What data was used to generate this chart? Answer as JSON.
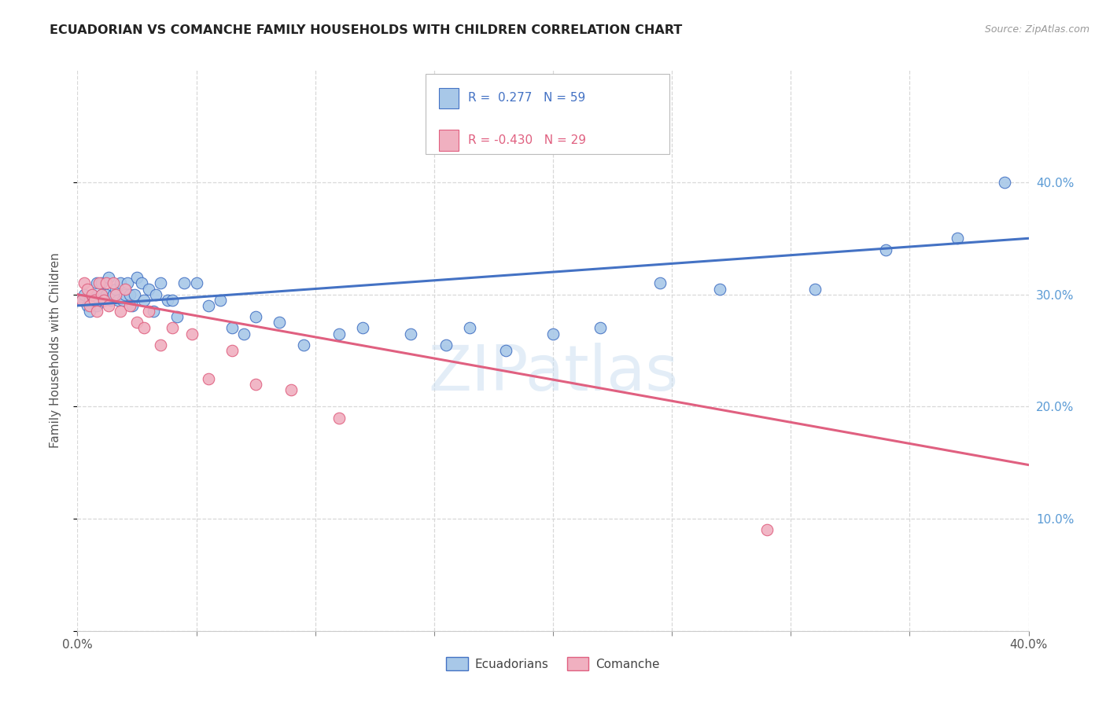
{
  "title": "ECUADORIAN VS COMANCHE FAMILY HOUSEHOLDS WITH CHILDREN CORRELATION CHART",
  "source": "Source: ZipAtlas.com",
  "ylabel": "Family Households with Children",
  "xlim": [
    0.0,
    0.4
  ],
  "ylim": [
    0.0,
    0.5
  ],
  "ytick_values": [
    0.0,
    0.1,
    0.2,
    0.3,
    0.4
  ],
  "xtick_values": [
    0.0,
    0.05,
    0.1,
    0.15,
    0.2,
    0.25,
    0.3,
    0.35,
    0.4
  ],
  "watermark": "ZIPatlas",
  "legend_blue_label": "Ecuadorians",
  "legend_pink_label": "Comanche",
  "blue_R": 0.277,
  "blue_N": 59,
  "pink_R": -0.43,
  "pink_N": 29,
  "blue_color": "#a8c8e8",
  "pink_color": "#f0b0c0",
  "blue_line_color": "#4472c4",
  "pink_line_color": "#e06080",
  "background_color": "#ffffff",
  "grid_color": "#d8d8d8",
  "blue_scatter_x": [
    0.002,
    0.003,
    0.004,
    0.005,
    0.005,
    0.006,
    0.007,
    0.008,
    0.008,
    0.009,
    0.01,
    0.01,
    0.011,
    0.012,
    0.013,
    0.014,
    0.015,
    0.016,
    0.017,
    0.018,
    0.019,
    0.02,
    0.021,
    0.022,
    0.023,
    0.024,
    0.025,
    0.027,
    0.028,
    0.03,
    0.032,
    0.033,
    0.035,
    0.038,
    0.04,
    0.042,
    0.045,
    0.05,
    0.055,
    0.06,
    0.065,
    0.07,
    0.075,
    0.085,
    0.095,
    0.11,
    0.12,
    0.14,
    0.155,
    0.165,
    0.18,
    0.2,
    0.22,
    0.245,
    0.27,
    0.31,
    0.34,
    0.37,
    0.39
  ],
  "blue_scatter_y": [
    0.295,
    0.3,
    0.29,
    0.285,
    0.295,
    0.3,
    0.295,
    0.29,
    0.31,
    0.295,
    0.3,
    0.31,
    0.295,
    0.3,
    0.315,
    0.295,
    0.3,
    0.305,
    0.295,
    0.31,
    0.295,
    0.3,
    0.31,
    0.3,
    0.29,
    0.3,
    0.315,
    0.31,
    0.295,
    0.305,
    0.285,
    0.3,
    0.31,
    0.295,
    0.295,
    0.28,
    0.31,
    0.31,
    0.29,
    0.295,
    0.27,
    0.265,
    0.28,
    0.275,
    0.255,
    0.265,
    0.27,
    0.265,
    0.255,
    0.27,
    0.25,
    0.265,
    0.27,
    0.31,
    0.305,
    0.305,
    0.34,
    0.35,
    0.4
  ],
  "pink_scatter_x": [
    0.002,
    0.003,
    0.004,
    0.005,
    0.006,
    0.007,
    0.008,
    0.009,
    0.01,
    0.011,
    0.012,
    0.013,
    0.015,
    0.016,
    0.018,
    0.02,
    0.022,
    0.025,
    0.028,
    0.03,
    0.035,
    0.04,
    0.048,
    0.055,
    0.065,
    0.075,
    0.09,
    0.11,
    0.29
  ],
  "pink_scatter_y": [
    0.295,
    0.31,
    0.305,
    0.29,
    0.3,
    0.295,
    0.285,
    0.31,
    0.3,
    0.295,
    0.31,
    0.29,
    0.31,
    0.3,
    0.285,
    0.305,
    0.29,
    0.275,
    0.27,
    0.285,
    0.255,
    0.27,
    0.265,
    0.225,
    0.25,
    0.22,
    0.215,
    0.19,
    0.09
  ],
  "blue_trendline_x0": 0.0,
  "blue_trendline_y0": 0.29,
  "blue_trendline_x1": 0.4,
  "blue_trendline_y1": 0.35,
  "pink_trendline_x0": 0.0,
  "pink_trendline_y0": 0.3,
  "pink_trendline_x1": 0.4,
  "pink_trendline_y1": 0.148
}
